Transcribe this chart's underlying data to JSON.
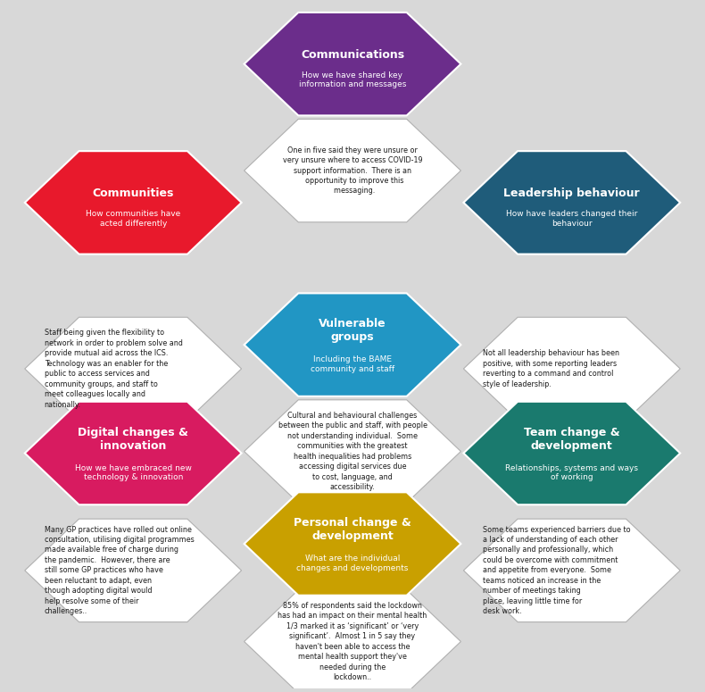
{
  "bg_color": "#d8d8d8",
  "hexagons": [
    {
      "id": "communications",
      "color": "#6B2D8B",
      "title": "Communications",
      "subtitle": "How we have shared key\ninformation and messages",
      "body": "One in five said they were unsure or\nvery unsure where to access COVID-19\nsupport information.  There is an\n  opportunity to improve this\n  messaging.",
      "body_align": "center"
    },
    {
      "id": "communities",
      "color": "#E8192C",
      "title": "Communities",
      "subtitle": "How communities have\nacted differently",
      "body": "Staff being given the flexibility to\nnetwork in order to problem solve and\nprovide mutual aid across the ICS.\nTechnology was an enabler for the\npublic to access services and\ncommunity groups, and staff to\nmeet colleagues locally and\nnationally.",
      "body_align": "left"
    },
    {
      "id": "leadership",
      "color": "#1F5C7A",
      "title": "Leadership behaviour",
      "subtitle": "How have leaders changed their\nbehaviour",
      "body": "Not all leadership behaviour has been\npositive, with some reporting leaders\nreverting to a command and control\nstyle of leadership.",
      "body_align": "left"
    },
    {
      "id": "vulnerable",
      "color": "#2196C4",
      "title": "Vulnerable\ngroups",
      "subtitle": "Including the BAME\ncommunity and staff",
      "body": "Cultural and behavioural challenges\nbetween the public and staff, with people\nnot understanding individual.  Some\ncommunities with the greatest\nhealth inequalities had problems\naccessing digital services due\nto cost, language, and\naccessibility.",
      "body_align": "center"
    },
    {
      "id": "digital",
      "color": "#D81B60",
      "title": "Digital changes &\ninnovation",
      "subtitle": "How we have embraced new\ntechnology & innovation",
      "body": "Many GP practices have rolled out online\nconsultation, utilising digital programmes\nmade available free of charge during\nthe pandemic.  However, there are\nstill some GP practices who have\nbeen reluctant to adapt, even\nthough adopting digital would\nhelp resolve some of their\nchallenges..",
      "body_align": "left"
    },
    {
      "id": "team",
      "color": "#1A7A6E",
      "title": "Team change &\ndevelopment",
      "subtitle": "Relationships, systems and ways\nof working",
      "body": "Some teams experienced barriers due to\na lack of understanding of each other\npersonally and professionally, which\ncould be overcome with commitment\nand appetite from everyone.  Some\nteams noticed an increase in the\nnumber of meetings taking\nplace, leaving little time for\ndesk work.",
      "body_align": "left"
    },
    {
      "id": "personal",
      "color": "#C9A000",
      "title": "Personal change &\ndevelopment",
      "subtitle": "What are the individual\nchanges and developments",
      "body": "85% of respondents said the lockdown\nhas had an impact on their mental health\n1/3 marked it as ‘significant’ or ‘very\nsignificant’.  Almost 1 in 5 say they\nhaven't been able to access the\nmental health support they've\nneeded during the\nlockdown..",
      "body_align": "center"
    }
  ]
}
